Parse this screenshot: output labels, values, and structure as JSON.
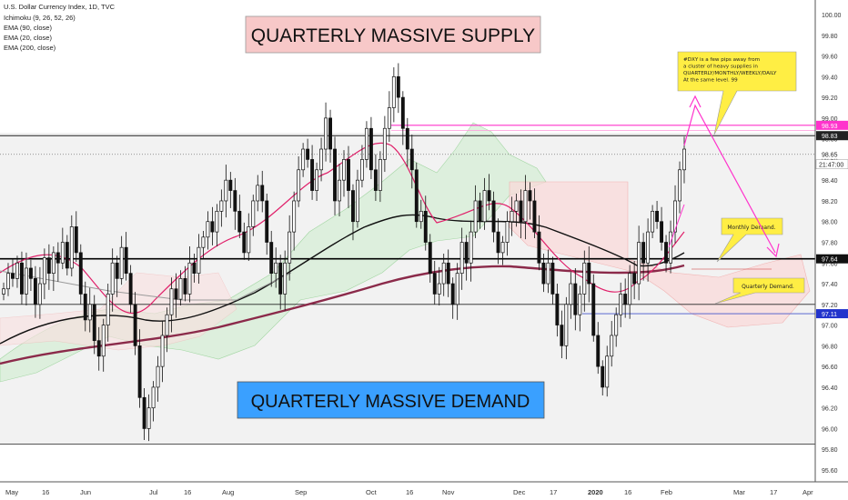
{
  "chart_data": {
    "type": "candlestick",
    "symbol_line": "U.S. Dollar Currency Index, 1D, TVC",
    "indicators": [
      "Ichimoku (9, 26, 52, 26)",
      "EMA (90, close)",
      "EMA (20, close)",
      "EMA (200, close)"
    ],
    "y_ticks": [
      "100.00",
      "99.80",
      "99.60",
      "99.40",
      "99.20",
      "99.00",
      "98.80",
      "98.60",
      "98.40",
      "98.20",
      "98.00",
      "97.80",
      "97.60",
      "97.40",
      "97.20",
      "97.00",
      "96.80",
      "96.60",
      "96.40",
      "96.20",
      "96.00",
      "95.80",
      "95.60"
    ],
    "ylim": [
      95.5,
      100.05
    ],
    "x_ticks": [
      "May",
      "16",
      "Jun",
      "Jul",
      "16",
      "Aug",
      "Sep",
      "Oct",
      "16",
      "Nov",
      "Dec",
      "17",
      "2020",
      "16",
      "Feb",
      "Mar",
      "17",
      "Apr"
    ],
    "price_labels": {
      "top_zone_upper": "98.93",
      "top_zone_lower": "98.83",
      "current_dotted": "98.65",
      "countdown": "21:47:00",
      "demand_level": "97.64",
      "blue_level": "97.11"
    },
    "horizontal_levels": [
      98.93,
      98.83,
      98.65,
      97.64,
      97.2,
      97.11,
      95.85
    ],
    "annotations": {
      "supply_box": "QUARTERLY MASSIVE SUPPLY",
      "demand_box": "QUARTERLY MASSIVE DEMAND",
      "note_yellow": [
        "#DXY is a few pips away from",
        "a cluster of heavy supplies in",
        "QUARTERLY/MONTHLY/WEEKLY/DAILY",
        "At the same level. 99"
      ],
      "monthly_demand": "Monthly Demand.",
      "quarterly_demand": "Quarterly Demand."
    },
    "ohlc_closes": [
      97.35,
      97.5,
      97.45,
      97.6,
      97.3,
      97.55,
      97.45,
      97.2,
      97.4,
      97.65,
      97.5,
      97.7,
      97.6,
      97.8,
      97.55,
      97.95,
      97.7,
      97.3,
      97.05,
      97.2,
      96.85,
      96.7,
      97.0,
      97.3,
      97.6,
      97.45,
      97.75,
      97.5,
      97.2,
      96.8,
      96.3,
      96.0,
      96.2,
      96.4,
      96.6,
      96.9,
      97.1,
      97.35,
      97.25,
      97.45,
      97.3,
      97.6,
      97.5,
      97.75,
      97.85,
      98.0,
      97.9,
      98.1,
      98.2,
      98.4,
      98.3,
      98.1,
      97.9,
      97.7,
      97.95,
      98.2,
      98.35,
      98.2,
      97.8,
      97.5,
      97.6,
      97.3,
      97.6,
      97.9,
      98.2,
      98.5,
      98.7,
      98.6,
      98.3,
      98.5,
      98.7,
      99.0,
      98.7,
      98.2,
      98.4,
      98.6,
      98.3,
      98.0,
      98.4,
      98.6,
      98.9,
      98.5,
      98.3,
      98.6,
      98.9,
      99.1,
      99.4,
      99.2,
      98.9,
      98.7,
      98.5,
      98.0,
      98.1,
      97.8,
      97.5,
      97.3,
      97.4,
      97.6,
      97.4,
      97.2,
      97.5,
      97.8,
      97.6,
      97.9,
      98.2,
      98.0,
      98.3,
      98.2,
      97.9,
      97.7,
      97.8,
      98.0,
      98.1,
      98.2,
      98.0,
      98.3,
      98.2,
      97.9,
      97.6,
      97.4,
      97.6,
      97.3,
      97.0,
      96.8,
      97.2,
      97.4,
      97.1,
      97.3,
      97.6,
      97.4,
      96.9,
      96.6,
      96.4,
      96.7,
      96.9,
      97.1,
      97.3,
      97.2,
      97.5,
      97.4,
      97.8,
      97.6,
      97.9,
      98.1,
      98.0,
      97.8,
      97.6,
      97.9,
      98.2,
      98.5,
      98.7
    ]
  }
}
